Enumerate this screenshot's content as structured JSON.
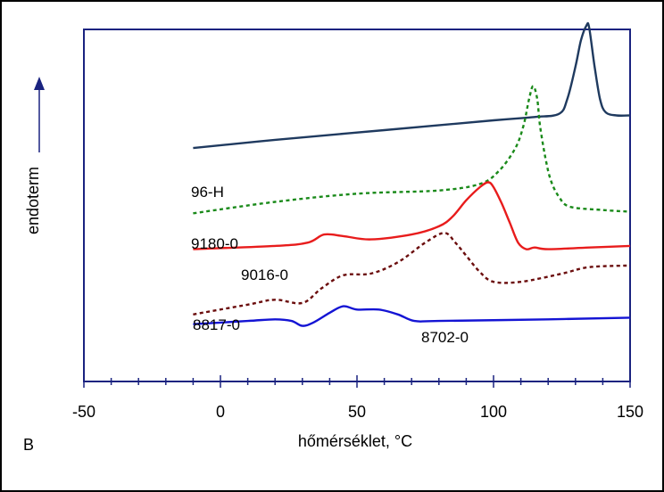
{
  "panel_label": "B",
  "chart_data": {
    "type": "line",
    "title": "",
    "xlabel": "hőmérséklet, °C",
    "ylabel": "endoterm",
    "xlim": [
      -50,
      150
    ],
    "x_ticks": [
      -50,
      0,
      50,
      100,
      150
    ],
    "x_tick_labels": [
      "-50",
      "0",
      "50",
      "100",
      "150"
    ],
    "grid": false,
    "legend": "none",
    "y_units": "arbitrary (stacked curves)",
    "ylim": [
      0,
      100
    ],
    "series": [
      {
        "name": "96-H",
        "color": "#1f3a5f",
        "dash": "solid",
        "points": [
          [
            -10,
            65
          ],
          [
            20,
            67.5
          ],
          [
            60,
            70.5
          ],
          [
            100,
            73.5
          ],
          [
            115,
            74.5
          ],
          [
            124,
            75.5
          ],
          [
            127,
            80
          ],
          [
            130,
            90
          ],
          [
            132,
            98
          ],
          [
            134,
            102.5
          ],
          [
            135,
            102
          ],
          [
            137,
            90
          ],
          [
            139,
            80
          ],
          [
            141,
            76
          ],
          [
            145,
            75
          ],
          [
            150,
            75
          ]
        ]
      },
      {
        "name": "9180-0",
        "color": "#1a8a1a",
        "dash": "dotted",
        "points": [
          [
            -10,
            45
          ],
          [
            20,
            48.5
          ],
          [
            50,
            51
          ],
          [
            80,
            52
          ],
          [
            95,
            54
          ],
          [
            102,
            58
          ],
          [
            108,
            65
          ],
          [
            111,
            72
          ],
          [
            113,
            80
          ],
          [
            114.5,
            84
          ],
          [
            116,
            80
          ],
          [
            117,
            72
          ],
          [
            119,
            62
          ],
          [
            121,
            55
          ],
          [
            124,
            50
          ],
          [
            128,
            47
          ],
          [
            140,
            46
          ],
          [
            150,
            45.5
          ]
        ]
      },
      {
        "name": "9016-0",
        "color": "#e81c1c",
        "dash": "solid",
        "points": [
          [
            -10,
            34
          ],
          [
            20,
            35
          ],
          [
            32,
            36
          ],
          [
            38,
            38.5
          ],
          [
            45,
            38
          ],
          [
            55,
            37
          ],
          [
            70,
            38.5
          ],
          [
            80,
            41
          ],
          [
            85,
            44
          ],
          [
            90,
            49
          ],
          [
            95,
            53
          ],
          [
            98,
            54.5
          ],
          [
            100,
            53
          ],
          [
            103,
            48
          ],
          [
            106,
            42
          ],
          [
            109,
            36
          ],
          [
            112,
            34
          ],
          [
            115,
            34.5
          ],
          [
            120,
            34
          ],
          [
            135,
            34.5
          ],
          [
            150,
            35
          ]
        ]
      },
      {
        "name": "8817-0",
        "color": "#6b0d0d",
        "dash": "dotted",
        "points": [
          [
            -10,
            14
          ],
          [
            10,
            17
          ],
          [
            20,
            18.5
          ],
          [
            30,
            17.5
          ],
          [
            37,
            22
          ],
          [
            45,
            26
          ],
          [
            55,
            26.5
          ],
          [
            65,
            30
          ],
          [
            75,
            36
          ],
          [
            82,
            39
          ],
          [
            86,
            36
          ],
          [
            90,
            32
          ],
          [
            95,
            27
          ],
          [
            100,
            24
          ],
          [
            110,
            24
          ],
          [
            125,
            26.5
          ],
          [
            135,
            28.5
          ],
          [
            150,
            29
          ]
        ]
      },
      {
        "name": "8702-0",
        "color": "#1414d4",
        "dash": "solid",
        "points": [
          [
            -10,
            11
          ],
          [
            10,
            12
          ],
          [
            20,
            12.5
          ],
          [
            26,
            12
          ],
          [
            30,
            10.5
          ],
          [
            34,
            11.5
          ],
          [
            40,
            14.5
          ],
          [
            45,
            16.5
          ],
          [
            50,
            15.5
          ],
          [
            58,
            15.5
          ],
          [
            65,
            14
          ],
          [
            71,
            12
          ],
          [
            80,
            12
          ],
          [
            120,
            12.5
          ],
          [
            150,
            13
          ]
        ]
      }
    ]
  }
}
